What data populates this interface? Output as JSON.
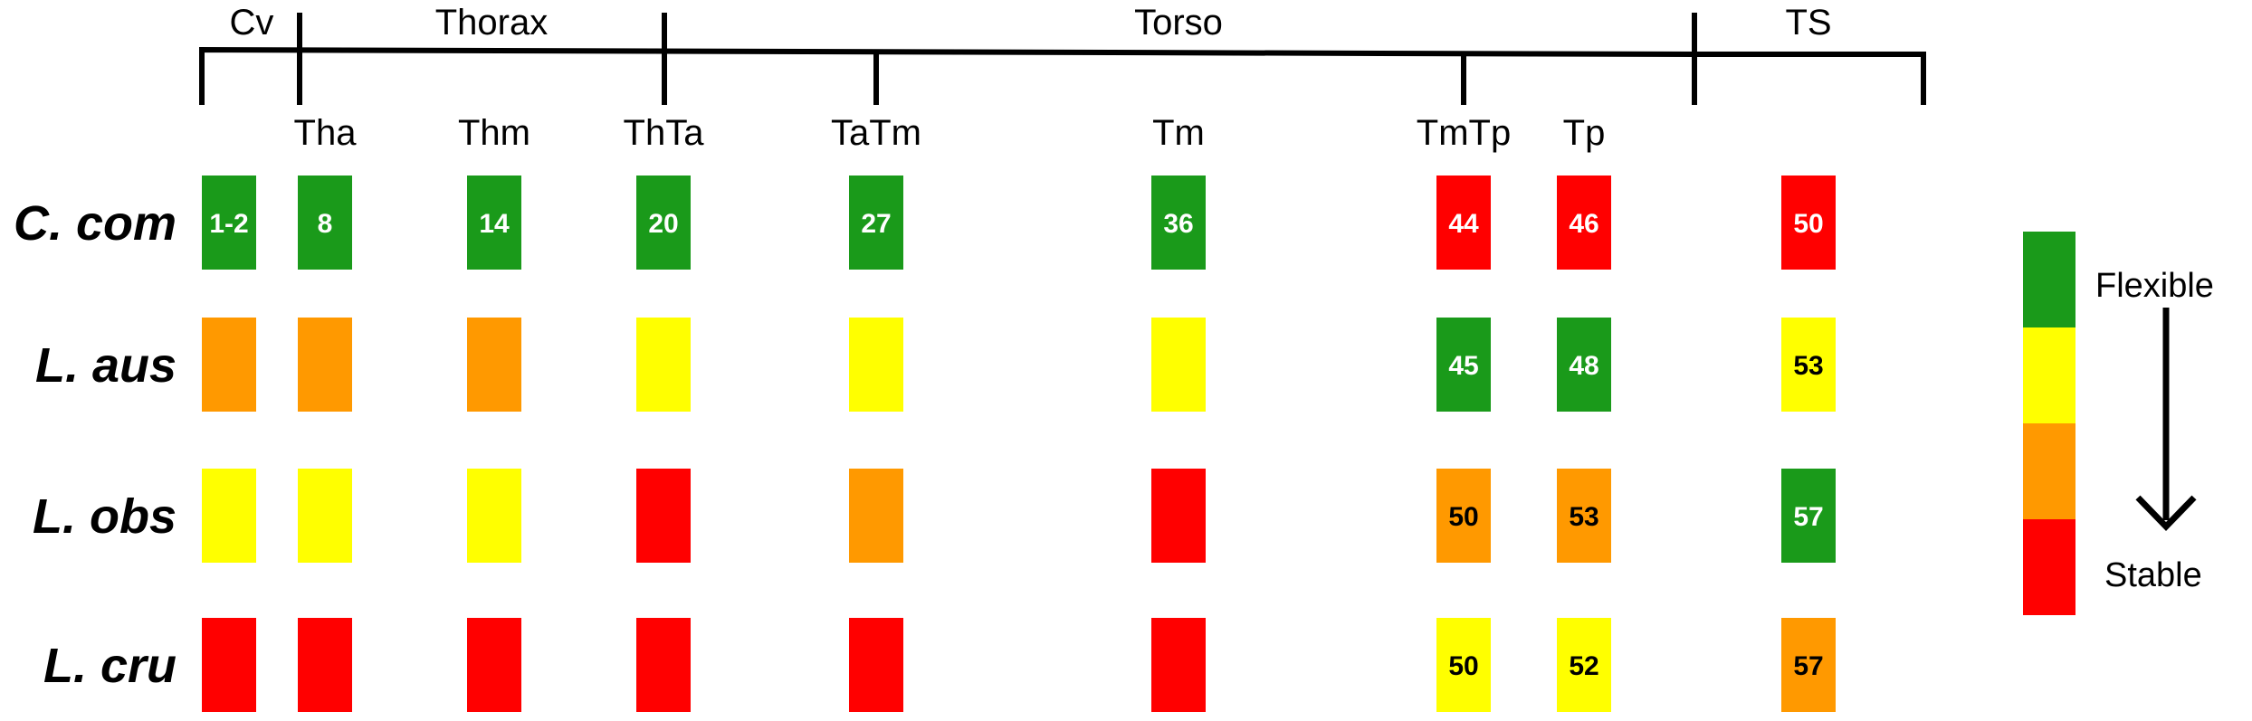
{
  "colors": {
    "flexible": "#1a9a1a",
    "moderately_flexible": "#ffff00",
    "moderately_stable": "#ff9900",
    "stable": "#ff0000",
    "text_on_dark": "#ffffff",
    "text_on_light": "#000000"
  },
  "regions": [
    {
      "label": "Cv"
    },
    {
      "label": "Thorax"
    },
    {
      "label": "Torso"
    },
    {
      "label": "TS"
    }
  ],
  "columns": [
    {
      "label": ""
    },
    {
      "label": "Tha"
    },
    {
      "label": "Thm"
    },
    {
      "label": "ThTa"
    },
    {
      "label": "TaTm"
    },
    {
      "label": "Tm"
    },
    {
      "label": "TmTp"
    },
    {
      "label": "Tp"
    },
    {
      "label": ""
    }
  ],
  "rows": [
    {
      "label": "C. com",
      "cells": [
        {
          "level": "flexible",
          "text": "1-2"
        },
        {
          "level": "flexible",
          "text": "8"
        },
        {
          "level": "flexible",
          "text": "14"
        },
        {
          "level": "flexible",
          "text": "20"
        },
        {
          "level": "flexible",
          "text": "27"
        },
        {
          "level": "flexible",
          "text": "36"
        },
        {
          "level": "stable",
          "text": "44"
        },
        {
          "level": "stable",
          "text": "46"
        },
        {
          "level": "stable",
          "text": "50"
        }
      ]
    },
    {
      "label": "L. aus",
      "cells": [
        {
          "level": "moderately_stable",
          "text": ""
        },
        {
          "level": "moderately_stable",
          "text": ""
        },
        {
          "level": "moderately_stable",
          "text": ""
        },
        {
          "level": "moderately_flexible",
          "text": ""
        },
        {
          "level": "moderately_flexible",
          "text": ""
        },
        {
          "level": "moderately_flexible",
          "text": ""
        },
        {
          "level": "flexible",
          "text": "45"
        },
        {
          "level": "flexible",
          "text": "48"
        },
        {
          "level": "moderately_flexible",
          "text": "53"
        }
      ]
    },
    {
      "label": "L. obs",
      "cells": [
        {
          "level": "moderately_flexible",
          "text": ""
        },
        {
          "level": "moderately_flexible",
          "text": ""
        },
        {
          "level": "moderately_flexible",
          "text": ""
        },
        {
          "level": "stable",
          "text": ""
        },
        {
          "level": "moderately_stable",
          "text": ""
        },
        {
          "level": "stable",
          "text": ""
        },
        {
          "level": "moderately_stable",
          "text": "50"
        },
        {
          "level": "moderately_stable",
          "text": "53"
        },
        {
          "level": "flexible",
          "text": "57"
        }
      ]
    },
    {
      "label": "L. cru",
      "cells": [
        {
          "level": "stable",
          "text": ""
        },
        {
          "level": "stable",
          "text": ""
        },
        {
          "level": "stable",
          "text": ""
        },
        {
          "level": "stable",
          "text": ""
        },
        {
          "level": "stable",
          "text": ""
        },
        {
          "level": "stable",
          "text": ""
        },
        {
          "level": "moderately_flexible",
          "text": "50"
        },
        {
          "level": "moderately_flexible",
          "text": "52"
        },
        {
          "level": "moderately_stable",
          "text": "57"
        }
      ]
    }
  ],
  "legend": {
    "levels": [
      "flexible",
      "moderately_flexible",
      "moderately_stable",
      "stable"
    ],
    "top_label": "Flexible",
    "bottom_label": "Stable",
    "arrow_icon": "down-arrow-icon"
  }
}
